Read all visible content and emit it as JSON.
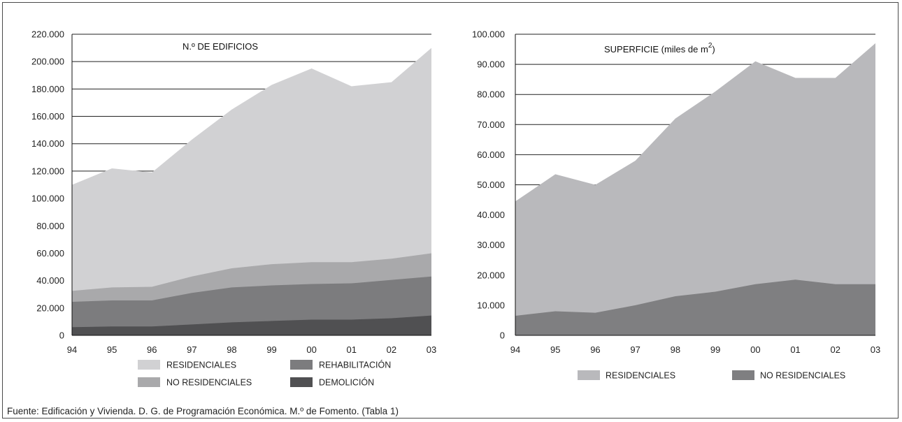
{
  "colors": {
    "residenciales_left": "#d1d1d3",
    "no_residenciales_left": "#a9a9ab",
    "rehabilitacion": "#7c7c7e",
    "demolicion": "#505052",
    "residenciales_right": "#b9b9bc",
    "no_residenciales_right": "#7f7f81",
    "gridline": "#222222",
    "frame": "#4a4a4a"
  },
  "source_note": "Fuente: Edificación y Vivienda. D. G. de Programación Económica. M.º de Fomento. (Tabla 1)",
  "chart_data": [
    {
      "type": "area",
      "stacked": true,
      "title": "N.º DE EDIFICIOS",
      "xlabel": "",
      "ylabel": "",
      "categories": [
        "94",
        "95",
        "96",
        "97",
        "98",
        "99",
        "00",
        "01",
        "02",
        "03"
      ],
      "ylim": [
        0,
        220000
      ],
      "yticks": [
        "0",
        "20.000",
        "40.000",
        "60.000",
        "80.000",
        "100.000",
        "120.000",
        "140.000",
        "160.000",
        "180.000",
        "200.000",
        "220.000"
      ],
      "grid": true,
      "legend_position": "bottom",
      "series": [
        {
          "name": "DEMOLICIÓN",
          "color": "#505052",
          "values": [
            6000,
            6500,
            6500,
            8000,
            9500,
            10500,
            11500,
            11500,
            12500,
            14500
          ]
        },
        {
          "name": "REHABILITACIÓN",
          "color": "#7c7c7e",
          "values": [
            18500,
            19000,
            19000,
            23000,
            25500,
            26000,
            26000,
            26500,
            28000,
            28500
          ]
        },
        {
          "name": "NO RESIDENCIALES",
          "color": "#a9a9ab",
          "values": [
            8000,
            9500,
            10000,
            12000,
            14000,
            15500,
            16000,
            15500,
            15500,
            17000
          ]
        },
        {
          "name": "RESIDENCIALES",
          "color": "#d1d1d3",
          "values": [
            77500,
            87000,
            83500,
            100000,
            116000,
            131000,
            141500,
            128500,
            129000,
            150000
          ]
        }
      ],
      "legend": [
        {
          "name": "RESIDENCIALES",
          "color": "#d1d1d3"
        },
        {
          "name": "REHABILITACIÓN",
          "color": "#7c7c7e"
        },
        {
          "name": "NO RESIDENCIALES",
          "color": "#a9a9ab"
        },
        {
          "name": "DEMOLICIÓN",
          "color": "#505052"
        }
      ]
    },
    {
      "type": "area",
      "stacked": true,
      "title": "SUPERFICIE (miles de m",
      "title_superscript": "2",
      "title_suffix": ")",
      "xlabel": "",
      "ylabel": "",
      "categories": [
        "94",
        "95",
        "96",
        "97",
        "98",
        "99",
        "00",
        "01",
        "02",
        "03"
      ],
      "ylim": [
        0,
        100000
      ],
      "yticks": [
        "0",
        "10.000",
        "20.000",
        "30.000",
        "40.000",
        "50.000",
        "60.000",
        "70.000",
        "80.000",
        "90.000",
        "100.000"
      ],
      "grid": true,
      "legend_position": "bottom",
      "series": [
        {
          "name": "NO RESIDENCIALES",
          "color": "#7f7f81",
          "values": [
            6500,
            8000,
            7500,
            10000,
            13000,
            14500,
            17000,
            18500,
            17000,
            17000
          ]
        },
        {
          "name": "RESIDENCIALES",
          "color": "#b9b9bc",
          "values": [
            38000,
            45500,
            42500,
            48000,
            59000,
            66500,
            74000,
            67000,
            68500,
            80000
          ]
        }
      ],
      "legend": [
        {
          "name": "RESIDENCIALES",
          "color": "#b9b9bc"
        },
        {
          "name": "NO RESIDENCIALES",
          "color": "#7f7f81"
        }
      ]
    }
  ]
}
